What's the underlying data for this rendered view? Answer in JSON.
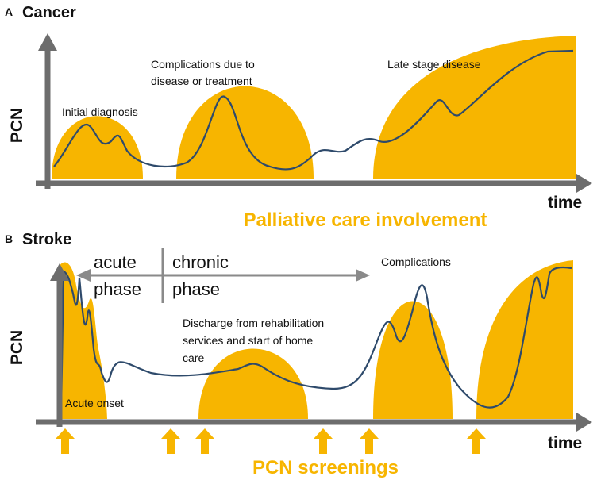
{
  "panels": [
    {
      "label": "A",
      "title": "Cancer",
      "y_axis": "PCN",
      "x_axis": "time",
      "annotations": [
        [
          "Initial diagnosis"
        ],
        [
          "Complications due to",
          "disease or treatment"
        ],
        [
          "Late stage disease"
        ]
      ],
      "caption": "Palliative care involvement"
    },
    {
      "label": "B",
      "title": "Stroke",
      "y_axis": "PCN",
      "x_axis": "time",
      "phases": [
        [
          "acute",
          "phase"
        ],
        [
          "chronic",
          "phase"
        ]
      ],
      "annotations": [
        [
          "Complications"
        ],
        [
          "Discharge from rehabilitation",
          "services and start of home",
          "care"
        ],
        [
          "Acute onset"
        ]
      ],
      "caption": "PCN screenings"
    }
  ]
}
